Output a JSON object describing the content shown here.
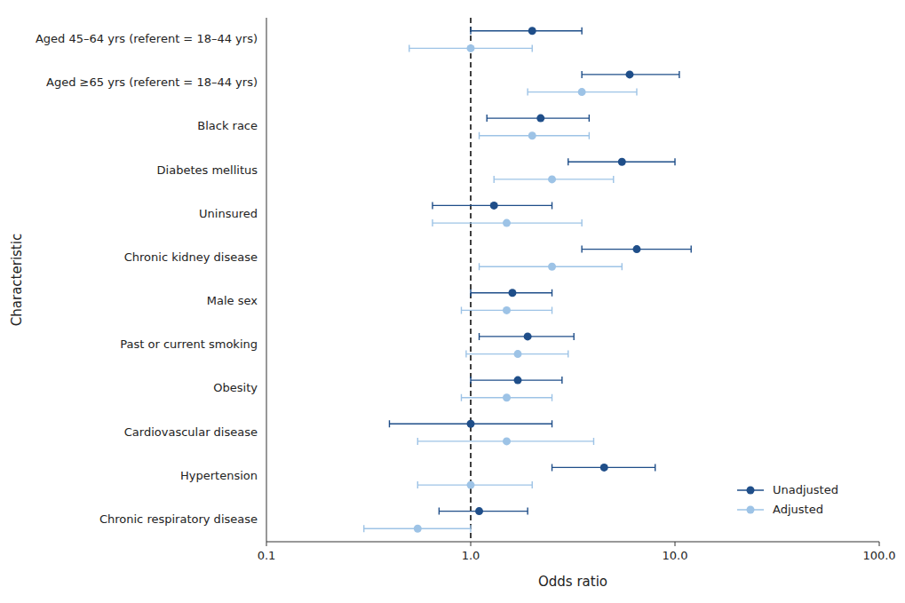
{
  "chart_data": {
    "type": "forest",
    "orientation": "horizontal",
    "xlabel": "Odds ratio",
    "ylabel": "Characteristic",
    "categories": [
      "Aged 45–64 yrs (referent = 18–44 yrs)",
      "Aged ≥65 yrs (referent = 18–44 yrs)",
      "Black race",
      "Diabetes mellitus",
      "Uninsured",
      "Chronic kidney disease",
      "Male sex",
      "Past or current smoking",
      "Obesity",
      "Cardiovascular disease",
      "Hypertension",
      "Chronic respiratory disease"
    ],
    "series": [
      {
        "name": "Unadjusted",
        "color": "#1f4e89",
        "values": [
          2.0,
          6.0,
          2.2,
          5.5,
          1.3,
          6.5,
          1.6,
          1.9,
          1.7,
          1.0,
          4.5,
          1.1
        ],
        "ci_low": [
          1.0,
          3.5,
          1.2,
          3.0,
          0.65,
          3.5,
          1.0,
          1.1,
          1.0,
          0.4,
          2.5,
          0.7
        ],
        "ci_high": [
          3.5,
          10.5,
          3.8,
          10.0,
          2.5,
          12.0,
          2.5,
          3.2,
          2.8,
          2.5,
          8.0,
          1.9
        ]
      },
      {
        "name": "Adjusted",
        "color": "#9dc3e6",
        "values": [
          1.0,
          3.5,
          2.0,
          2.5,
          1.5,
          2.5,
          1.5,
          1.7,
          1.5,
          1.5,
          1.0,
          0.55
        ],
        "ci_low": [
          0.5,
          1.9,
          1.1,
          1.3,
          0.65,
          1.1,
          0.9,
          0.95,
          0.9,
          0.55,
          0.55,
          0.3
        ],
        "ci_high": [
          2.0,
          6.5,
          3.8,
          5.0,
          3.5,
          5.5,
          2.5,
          3.0,
          2.5,
          4.0,
          2.0,
          1.0
        ]
      }
    ],
    "log": "x",
    "xlim": [
      0.1,
      100.0
    ],
    "xticks": [
      0.1,
      {
        "value": 1.0,
        "label": "1.0"
      },
      {
        "value": 10.0,
        "label": "10.0"
      },
      {
        "value": 100.0,
        "label": "100.0"
      }
    ],
    "reference_x": 1.0,
    "grid": false,
    "legend": "lower right"
  }
}
